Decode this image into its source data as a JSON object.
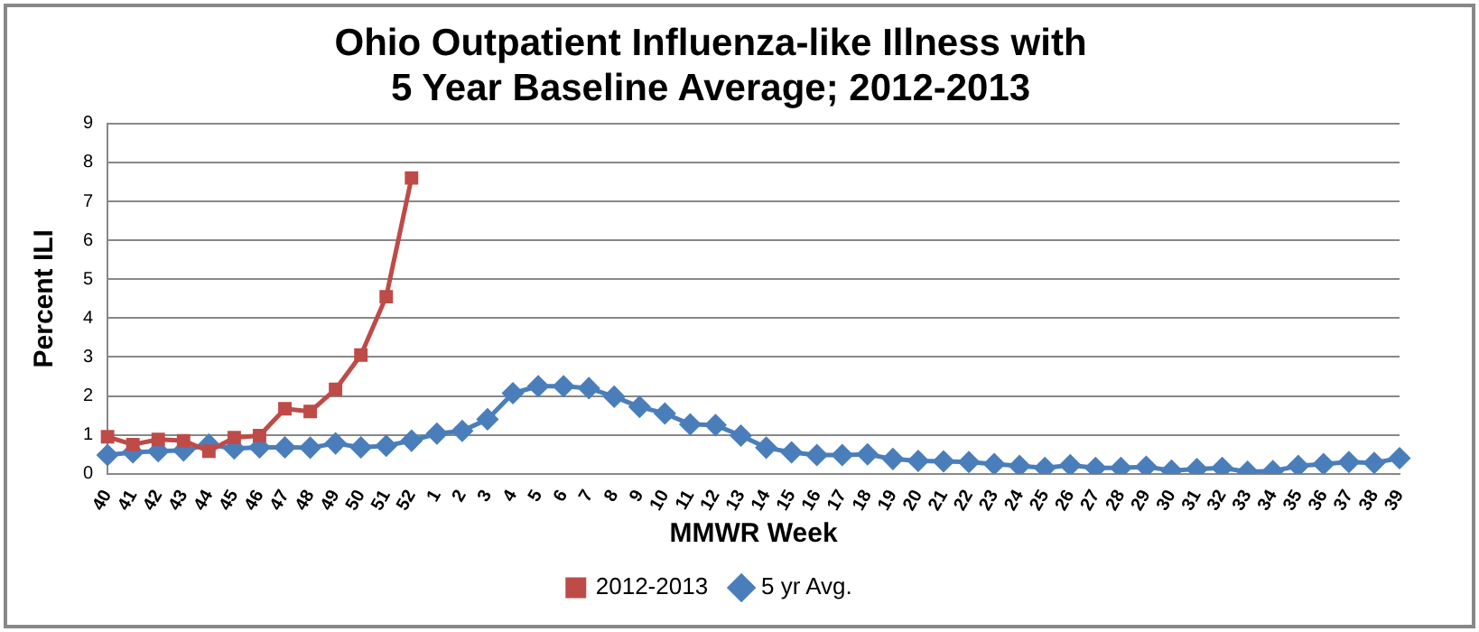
{
  "chart_data": {
    "type": "line",
    "title": [
      "Ohio Outpatient Influenza-like Illness with",
      "5 Year Baseline Average; 2012-2013"
    ],
    "xlabel": "MMWR Week",
    "ylabel": "Percent ILI",
    "categories": [
      "40",
      "41",
      "42",
      "43",
      "44",
      "45",
      "46",
      "47",
      "48",
      "49",
      "50",
      "51",
      "52",
      "1",
      "2",
      "3",
      "4",
      "5",
      "6",
      "7",
      "8",
      "9",
      "10",
      "11",
      "12",
      "13",
      "14",
      "15",
      "16",
      "17",
      "18",
      "19",
      "20",
      "21",
      "22",
      "23",
      "24",
      "25",
      "26",
      "27",
      "28",
      "29",
      "30",
      "31",
      "32",
      "33",
      "34",
      "35",
      "36",
      "37",
      "38",
      "39"
    ],
    "series": [
      {
        "name": "5 yr Avg.",
        "color": "#4a7ebb",
        "marker": "diamond",
        "values": [
          0.48,
          0.55,
          0.58,
          0.6,
          0.75,
          0.65,
          0.68,
          0.68,
          0.67,
          0.78,
          0.68,
          0.72,
          0.85,
          1.03,
          1.1,
          1.4,
          2.07,
          2.25,
          2.25,
          2.2,
          1.98,
          1.72,
          1.55,
          1.27,
          1.25,
          0.98,
          0.67,
          0.55,
          0.48,
          0.48,
          0.5,
          0.38,
          0.33,
          0.32,
          0.3,
          0.25,
          0.2,
          0.15,
          0.22,
          0.15,
          0.15,
          0.18,
          0.08,
          0.12,
          0.15,
          0.05,
          0.07,
          0.2,
          0.25,
          0.3,
          0.28,
          0.4
        ]
      },
      {
        "name": "2012-2013",
        "color": "#be4b48",
        "marker": "square",
        "values": [
          0.95,
          0.75,
          0.88,
          0.85,
          0.58,
          0.93,
          0.98,
          1.67,
          1.6,
          2.17,
          3.05,
          4.55,
          7.6,
          null,
          null,
          null,
          null,
          null,
          null,
          null,
          null,
          null,
          null,
          null,
          null,
          null,
          null,
          null,
          null,
          null,
          null,
          null,
          null,
          null,
          null,
          null,
          null,
          null,
          null,
          null,
          null,
          null,
          null,
          null,
          null,
          null,
          null,
          null,
          null,
          null,
          null,
          null
        ]
      }
    ],
    "ylim": [
      0,
      9
    ],
    "yticks": [
      0,
      1,
      2,
      3,
      4,
      5,
      6,
      7,
      8,
      9
    ],
    "grid": "y",
    "legend": "bottom",
    "line_style": "solid"
  }
}
